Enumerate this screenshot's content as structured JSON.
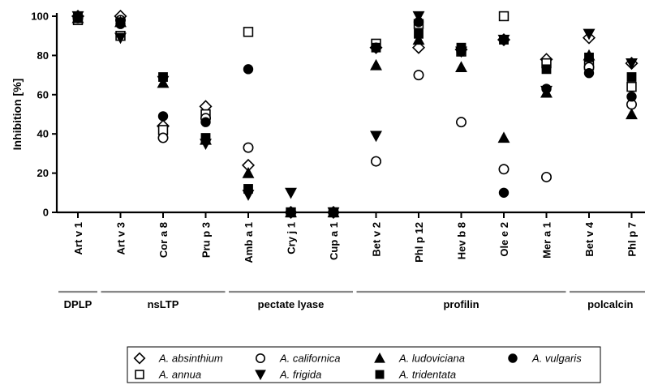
{
  "chart_data": {
    "type": "scatter",
    "ylabel": "Inhibition [%]",
    "xlabel": "",
    "ylim": [
      0,
      100
    ],
    "yticks": [
      0,
      20,
      40,
      60,
      80,
      100
    ],
    "categories": [
      "Art v 1",
      "Art v 3",
      "Cor a 8",
      "Pru p 3",
      "Amb a 1",
      "Cry j 1",
      "Cup a 1",
      "Bet v 2",
      "Phl p 12",
      "Hev b 8",
      "Ole e 2",
      "Mer a 1",
      "Bet v 4",
      "Phl p 7"
    ],
    "groups": [
      {
        "label": "DPLP",
        "start": 0,
        "end": 0
      },
      {
        "label": "nsLTP",
        "start": 1,
        "end": 3
      },
      {
        "label": "pectate lyase",
        "start": 4,
        "end": 6
      },
      {
        "label": "profilin",
        "start": 7,
        "end": 11
      },
      {
        "label": "polcalcin",
        "start": 12,
        "end": 13
      }
    ],
    "legend_position": "bottom",
    "series": [
      {
        "name": "A. absinthium",
        "marker": "diamond-open",
        "values": [
          100,
          100,
          44,
          54,
          24,
          0,
          0,
          84,
          84,
          83,
          88,
          78,
          89,
          76
        ]
      },
      {
        "name": "A. annua",
        "marker": "square-open",
        "values": [
          98,
          90,
          42,
          50,
          92,
          0,
          0,
          86,
          96,
          82,
          100,
          76,
          75,
          64
        ]
      },
      {
        "name": "A. californica",
        "marker": "circle-open",
        "values": [
          99,
          98,
          38,
          48,
          33,
          0,
          0,
          26,
          70,
          46,
          22,
          18,
          74,
          55
        ]
      },
      {
        "name": "A. frigida",
        "marker": "triangle-down-filled",
        "values": [
          100,
          89,
          67,
          35,
          9,
          10,
          0,
          39,
          100,
          82,
          88,
          62,
          91,
          76
        ]
      },
      {
        "name": "A. ludoviciana",
        "marker": "triangle-up-filled",
        "values": [
          99,
          97,
          66,
          37,
          20,
          0,
          0,
          75,
          88,
          74,
          38,
          61,
          80,
          50
        ]
      },
      {
        "name": "A. tridentata",
        "marker": "square-filled",
        "values": [
          100,
          97,
          69,
          38,
          12,
          0,
          0,
          84,
          91,
          84,
          88,
          73,
          79,
          69
        ]
      },
      {
        "name": "A. vulgaris",
        "marker": "circle-filled",
        "values": [
          99,
          96,
          49,
          46,
          73,
          0,
          0,
          84,
          97,
          82,
          10,
          63,
          71,
          59
        ]
      }
    ]
  },
  "legend": {
    "rows": [
      [
        "A. absinthium",
        "A. californica",
        "A. ludoviciana",
        "A. vulgaris"
      ],
      [
        "A. annua",
        "A. frigida",
        "A. tridentata"
      ]
    ]
  }
}
